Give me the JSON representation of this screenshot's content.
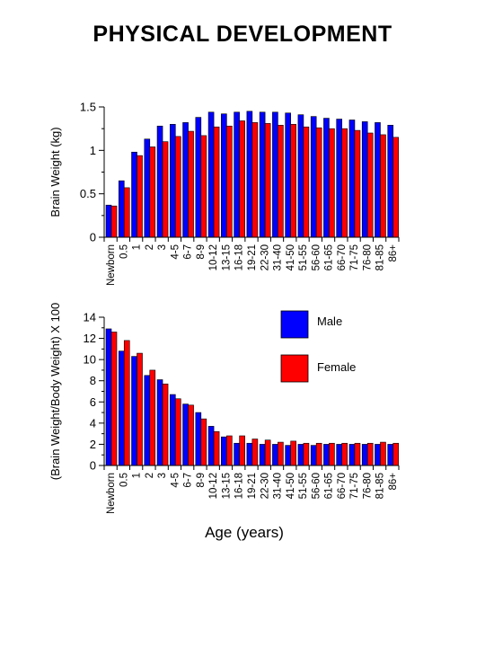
{
  "page": {
    "title": "PHYSICAL DEVELOPMENT"
  },
  "chart_data": [
    {
      "type": "bar",
      "ylabel": "Brain Weight (kg)",
      "xlabel": "",
      "ylim": [
        0,
        1.5
      ],
      "yticks": [
        "0",
        "0.5",
        "1",
        "1.5"
      ],
      "grid": false,
      "categories": [
        "Newborn",
        "0.5",
        "1",
        "2",
        "3",
        "4-5",
        "6-7",
        "8-9",
        "10-12",
        "13-15",
        "16-18",
        "19-21",
        "22-30",
        "31-40",
        "41-50",
        "51-55",
        "56-60",
        "61-65",
        "66-70",
        "71-75",
        "76-80",
        "81-85",
        "86+"
      ],
      "series": [
        {
          "name": "Male",
          "color": "#0000ff",
          "values": [
            0.37,
            0.65,
            0.98,
            1.13,
            1.28,
            1.3,
            1.32,
            1.38,
            1.44,
            1.42,
            1.44,
            1.45,
            1.44,
            1.44,
            1.43,
            1.41,
            1.39,
            1.37,
            1.36,
            1.35,
            1.33,
            1.32,
            1.29
          ]
        },
        {
          "name": "Female",
          "color": "#ff0000",
          "values": [
            0.36,
            0.57,
            0.94,
            1.04,
            1.1,
            1.16,
            1.22,
            1.17,
            1.27,
            1.28,
            1.34,
            1.32,
            1.31,
            1.29,
            1.3,
            1.27,
            1.26,
            1.25,
            1.25,
            1.23,
            1.2,
            1.18,
            1.15
          ]
        }
      ]
    },
    {
      "type": "bar",
      "ylabel": "(Brain Weight/Body Weight) X 100",
      "xlabel": "Age (years)",
      "ylim": [
        0,
        14
      ],
      "yticks": [
        "0",
        "2",
        "4",
        "6",
        "8",
        "10",
        "12",
        "14"
      ],
      "grid": false,
      "legend": {
        "position": "top-right",
        "entries": [
          "Male",
          "Female"
        ]
      },
      "categories": [
        "Newborn",
        "0.5",
        "1",
        "2",
        "3",
        "4-5",
        "6-7",
        "8-9",
        "10-12",
        "13-15",
        "16-18",
        "19-21",
        "22-30",
        "31-40",
        "41-50",
        "51-55",
        "56-60",
        "61-65",
        "66-70",
        "71-75",
        "76-80",
        "81-85",
        "86+"
      ],
      "series": [
        {
          "name": "Male",
          "color": "#0000ff",
          "values": [
            12.9,
            10.8,
            10.3,
            8.5,
            8.1,
            6.7,
            5.8,
            5.0,
            3.7,
            2.7,
            2.1,
            2.1,
            2.0,
            2.0,
            1.9,
            2.0,
            1.9,
            2.0,
            2.0,
            2.0,
            2.0,
            2.0,
            2.0
          ]
        },
        {
          "name": "Female",
          "color": "#ff0000",
          "values": [
            12.6,
            11.8,
            10.6,
            9.0,
            7.7,
            6.3,
            5.7,
            4.4,
            3.2,
            2.8,
            2.8,
            2.5,
            2.4,
            2.2,
            2.3,
            2.1,
            2.1,
            2.1,
            2.1,
            2.1,
            2.1,
            2.2,
            2.1
          ]
        }
      ]
    }
  ]
}
